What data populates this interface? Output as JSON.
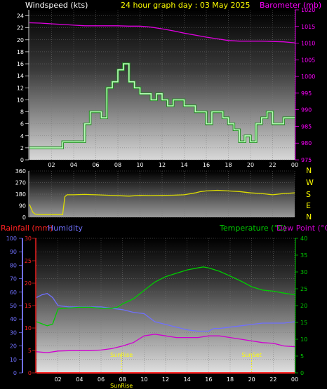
{
  "header": {
    "wind_title": "Windspeed (kts)",
    "main_title": "24 hour graph day : 03 May 2025",
    "baro_title": "Barometer (mb)"
  },
  "labels": {
    "rain": "Rainfall (mm)",
    "humidity": "Humidity",
    "temperature": "Temperature (°C)",
    "dewpoint": "Dew Point (°C)",
    "sunrise": "SunRise",
    "sunset": "SunSet",
    "sun_bottom": "SunRise"
  },
  "colors": {
    "wind": "#b8ffb8",
    "wind_outline": "#228822",
    "baro": "#e000e0",
    "dir": "#dddd00",
    "temp": "#00cc00",
    "humidity": "#7070ff",
    "dew": "#d000d0",
    "rain": "#ff2222",
    "baro_axis": "#ff00ff",
    "title": "#ffff00",
    "white": "#ffffff"
  },
  "chart_data": [
    {
      "type": "line",
      "name": "wind-baro",
      "x_ticks": [
        "02",
        "04",
        "06",
        "08",
        "10",
        "12",
        "14",
        "16",
        "18",
        "20",
        "22",
        "00"
      ],
      "xlim": [
        0,
        24
      ],
      "ylabel": "Windspeed (kts)",
      "ylim": [
        0,
        25
      ],
      "y_ticks": [
        0,
        2,
        4,
        6,
        8,
        10,
        12,
        14,
        16,
        18,
        20,
        22,
        24
      ],
      "y2label": "Barometer (mb)",
      "y2lim": [
        975,
        1020
      ],
      "y2_ticks": [
        975,
        980,
        985,
        990,
        995,
        1000,
        1005,
        1010,
        1015,
        1020
      ],
      "series": [
        {
          "name": "Windspeed (kts)",
          "axis": "left",
          "x": [
            0,
            3,
            3,
            5,
            5,
            5.5,
            5.5,
            6.5,
            6.5,
            7,
            7,
            7.5,
            7.5,
            8,
            8,
            8.5,
            8.5,
            9,
            9,
            9.5,
            9.5,
            10,
            10,
            11,
            11,
            11.5,
            11.5,
            12,
            12,
            12.5,
            12.5,
            13,
            13,
            14,
            14,
            15,
            15,
            16,
            16,
            16.5,
            16.5,
            17.5,
            17.5,
            18,
            18,
            18.5,
            18.5,
            19,
            19,
            19.5,
            19.5,
            20,
            20,
            20.5,
            20.5,
            21,
            21,
            21.5,
            21.5,
            22,
            22,
            23,
            23,
            24
          ],
          "values": [
            2,
            2,
            3,
            3,
            6,
            6,
            8,
            8,
            7,
            7,
            12,
            12,
            13,
            13,
            15,
            15,
            16,
            16,
            13,
            13,
            12,
            12,
            11,
            11,
            10,
            10,
            11,
            11,
            10,
            10,
            9,
            9,
            10,
            10,
            9,
            9,
            8,
            8,
            6,
            6,
            8,
            8,
            7,
            7,
            6,
            6,
            5,
            5,
            3,
            3,
            4,
            4,
            3,
            3,
            6,
            6,
            7,
            7,
            8,
            8,
            6,
            6,
            7,
            7
          ]
        },
        {
          "name": "Barometer (mb)",
          "axis": "right",
          "x": [
            0,
            1,
            2,
            3,
            4,
            5,
            6,
            7,
            8,
            9,
            10,
            11,
            12,
            13,
            14,
            15,
            16,
            17,
            18,
            19,
            20,
            21,
            22,
            23,
            24
          ],
          "values": [
            1016.1,
            1016,
            1015.8,
            1015.6,
            1015.4,
            1015.2,
            1015.2,
            1015.2,
            1015.2,
            1015.1,
            1015.1,
            1014.8,
            1014.3,
            1013.7,
            1013,
            1012.4,
            1011.8,
            1011.3,
            1010.8,
            1010.6,
            1010.6,
            1010.6,
            1010.5,
            1010.4,
            1010.1
          ]
        }
      ]
    },
    {
      "type": "line",
      "name": "wind-direction",
      "ylim": [
        0,
        360
      ],
      "y_ticks": [
        0,
        90,
        180,
        270,
        360
      ],
      "y2_ticks": [
        "N",
        "W",
        "S",
        "E",
        "N"
      ],
      "series": [
        {
          "name": "Wind direction",
          "x": [
            0,
            0.3,
            0.5,
            1,
            1.5,
            2,
            2.5,
            3,
            3.2,
            3.4,
            4,
            5,
            6,
            7,
            8,
            9,
            10,
            11,
            12,
            13,
            14,
            15,
            15.5,
            16,
            17,
            18,
            19,
            20,
            21,
            22,
            23,
            24
          ],
          "values": [
            100,
            40,
            25,
            20,
            20,
            20,
            20,
            20,
            160,
            175,
            175,
            178,
            175,
            172,
            168,
            165,
            170,
            168,
            170,
            172,
            175,
            190,
            200,
            205,
            210,
            205,
            200,
            190,
            185,
            175,
            185,
            190
          ]
        }
      ]
    },
    {
      "type": "line",
      "name": "rain-hum-temp",
      "x_ticks": [
        "02",
        "04",
        "06",
        "08",
        "10",
        "12",
        "14",
        "16",
        "18",
        "20",
        "22",
        "00"
      ],
      "xlim": [
        0,
        24
      ],
      "y_ticks_humidity": [
        0,
        10,
        20,
        30,
        40,
        50,
        60,
        70,
        80,
        90,
        100
      ],
      "y_ticks_rain": [
        0,
        5,
        10,
        15,
        20,
        25,
        30
      ],
      "rain_ylim": [
        0,
        30
      ],
      "y2lim": [
        0,
        40
      ],
      "y2_ticks": [
        0,
        5,
        10,
        15,
        20,
        25,
        30,
        35,
        40
      ],
      "sunrise": 7.9,
      "sunset": 20,
      "series": [
        {
          "name": "Temperature (°C)",
          "axis": "right",
          "x": [
            0,
            1,
            1.5,
            2,
            3,
            4,
            5,
            6,
            7,
            7.5,
            8,
            9,
            10,
            11,
            12,
            13,
            14,
            15,
            15.5,
            16,
            17,
            18,
            19,
            20,
            21,
            22,
            23,
            24
          ],
          "values": [
            15.2,
            14,
            14.5,
            19,
            19.3,
            19.5,
            19.5,
            19.2,
            19.2,
            19.5,
            20.5,
            22,
            24.5,
            27,
            28.6,
            29.6,
            30.6,
            31.2,
            31.5,
            31.2,
            30.2,
            28.8,
            27.3,
            25.6,
            24.6,
            24.3,
            23.7,
            23.2
          ]
        },
        {
          "name": "Humidity",
          "axis": "left",
          "x": [
            0,
            0.5,
            1,
            1.5,
            2,
            3,
            4,
            5,
            6,
            7,
            8,
            9,
            10,
            11,
            12,
            13,
            14,
            15,
            16,
            16.5,
            17,
            18,
            19,
            20,
            21,
            22,
            23,
            24
          ],
          "values": [
            56,
            58,
            59,
            56,
            50,
            49,
            49,
            49,
            49,
            48,
            47,
            45,
            44,
            38,
            36,
            34,
            32,
            31,
            31,
            33,
            33,
            34,
            35,
            36,
            37,
            37,
            37,
            38
          ]
        },
        {
          "name": "Dew Point (°C)",
          "axis": "right",
          "x": [
            0,
            1,
            2,
            3,
            4,
            5,
            6,
            7,
            8,
            9,
            10,
            11,
            12,
            13,
            14,
            15,
            16,
            17,
            18,
            19,
            20,
            21,
            22,
            23,
            24
          ],
          "values": [
            6.3,
            6,
            6.5,
            6.6,
            6.6,
            6.6,
            6.8,
            7.2,
            8,
            9,
            11,
            11.5,
            11,
            10.5,
            10.5,
            10.5,
            11,
            11,
            10.5,
            10,
            9.5,
            9,
            8.8,
            8,
            7.8
          ]
        },
        {
          "name": "Rainfall (mm)",
          "axis": "left_rain",
          "x": [
            0,
            24
          ],
          "values": [
            0,
            0
          ]
        }
      ]
    }
  ]
}
